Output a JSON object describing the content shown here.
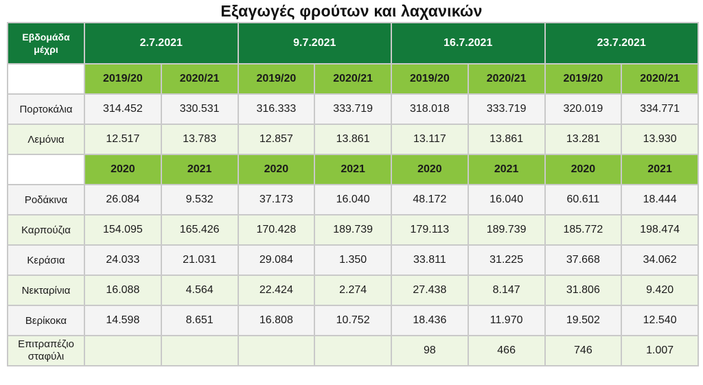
{
  "title": "Εξαγωγές φρούτων και λαχανικών",
  "corner_label": [
    "Εβδομάδα",
    "μέχρι"
  ],
  "weeks": [
    "2.7.2021",
    "9.7.2021",
    "16.7.2021",
    "23.7.2021"
  ],
  "subheader_a": [
    "2019/20",
    "2020/21",
    "2019/20",
    "2020/21",
    "2019/20",
    "2020/21",
    "2019/20",
    "2020/21"
  ],
  "subheader_b": [
    "2020",
    "2021",
    "2020",
    "2021",
    "2020",
    "2021",
    "2020",
    "2021"
  ],
  "section_a_rows": [
    {
      "label": "Πορτοκάλια",
      "values": [
        "314.452",
        "330.531",
        "316.333",
        "333.719",
        "318.018",
        "333.719",
        "320.019",
        "334.771"
      ]
    },
    {
      "label": "Λεμόνια",
      "values": [
        "12.517",
        "13.783",
        "12.857",
        "13.861",
        "13.117",
        "13.861",
        "13.281",
        "13.930"
      ]
    }
  ],
  "section_b_rows": [
    {
      "label": "Ροδάκινα",
      "values": [
        "26.084",
        "9.532",
        "37.173",
        "16.040",
        "48.172",
        "16.040",
        "60.611",
        "18.444"
      ]
    },
    {
      "label": "Καρπούζια",
      "values": [
        "154.095",
        "165.426",
        "170.428",
        "189.739",
        "179.113",
        "189.739",
        "185.772",
        "198.474"
      ]
    },
    {
      "label": "Κεράσια",
      "values": [
        "24.033",
        "21.031",
        "29.084",
        "1.350",
        "33.811",
        "31.225",
        "37.668",
        "34.062"
      ]
    },
    {
      "label": "Νεκταρίνια",
      "values": [
        "16.088",
        "4.564",
        "22.424",
        "2.274",
        "27.438",
        "8.147",
        "31.806",
        "9.420"
      ]
    },
    {
      "label": "Βερίκοκα",
      "values": [
        "14.598",
        "8.651",
        "16.808",
        "10.752",
        "18.436",
        "11.970",
        "19.502",
        "12.540"
      ]
    }
  ],
  "last_row": {
    "label": [
      "Επιτραπέζιο",
      "σταφύλι"
    ],
    "values": [
      "",
      "",
      "",
      "",
      "98",
      "466",
      "746",
      "1.007"
    ]
  }
}
